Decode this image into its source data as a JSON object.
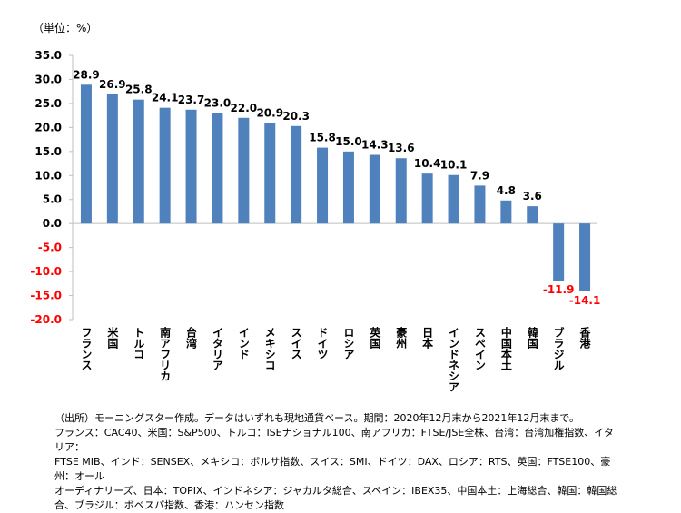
{
  "unit_label": "（単位：%）",
  "chart_data": {
    "type": "bar",
    "title": "",
    "xlabel": "",
    "ylabel": "（単位：%）",
    "ylim": [
      -20,
      35
    ],
    "yticks": [
      35,
      30,
      25,
      20,
      15,
      10,
      5,
      0,
      -5,
      -10,
      -15,
      -20
    ],
    "ytick_labels": [
      "35.0",
      "30.0",
      "25.0",
      "20.0",
      "15.0",
      "10.0",
      "5.0",
      "0.0",
      "-5.0",
      "-10.0",
      "-15.0",
      "-20.0"
    ],
    "grid": false,
    "legend": "none",
    "categories": [
      "フランス",
      "米国",
      "トルコ",
      "南アフリカ",
      "台湾",
      "イタリア",
      "インド",
      "メキシコ",
      "スイス",
      "ドイツ",
      "ロシア",
      "英国",
      "豪州",
      "日本",
      "インドネシア",
      "スペイン",
      "中国本土",
      "韓国",
      "ブラジル",
      "香港"
    ],
    "values": [
      28.9,
      26.9,
      25.8,
      24.1,
      23.7,
      23.0,
      22.0,
      20.9,
      20.3,
      15.8,
      15.0,
      14.3,
      13.6,
      10.4,
      10.1,
      7.9,
      4.8,
      3.6,
      -11.9,
      -14.1
    ],
    "value_labels": [
      "28.9",
      "26.9",
      "25.8",
      "24.1",
      "23.7",
      "23.0",
      "22.0",
      "20.9",
      "20.3",
      "15.8",
      "15.0",
      "14.3",
      "13.6",
      "10.4",
      "10.1",
      "7.9",
      "4.8",
      "3.6",
      "-11.9",
      "-14.1"
    ],
    "colors": {
      "bar": "#4F81BD",
      "negative_text": "#FF0000",
      "positive_text": "#000000",
      "axis": "#BFBFBF"
    }
  },
  "footer": {
    "lines": [
      "（出所）モーニングスター作成。データはいずれも現地通貨ベース。期間：2020年12月末から2021年12月末まで。",
      "フランス：CAC40、米国：S&P500、トルコ：ISEナショナル100、南アフリカ：FTSE/JSE全株、台湾：台湾加権指数、イタリア：",
      "FTSE MIB、インド：SENSEX、メキシコ：ボルサ指数、スイス：SMI、ドイツ：DAX、ロシア：RTS、英国：FTSE100、豪州：オール",
      "オーディナリーズ、日本：TOPIX、インドネシア：ジャカルタ総合、スペイン：IBEX35、中国本土：上海総合、韓国：韓国総",
      "合、ブラジル：ボベスパ指数、香港：ハンセン指数"
    ]
  }
}
